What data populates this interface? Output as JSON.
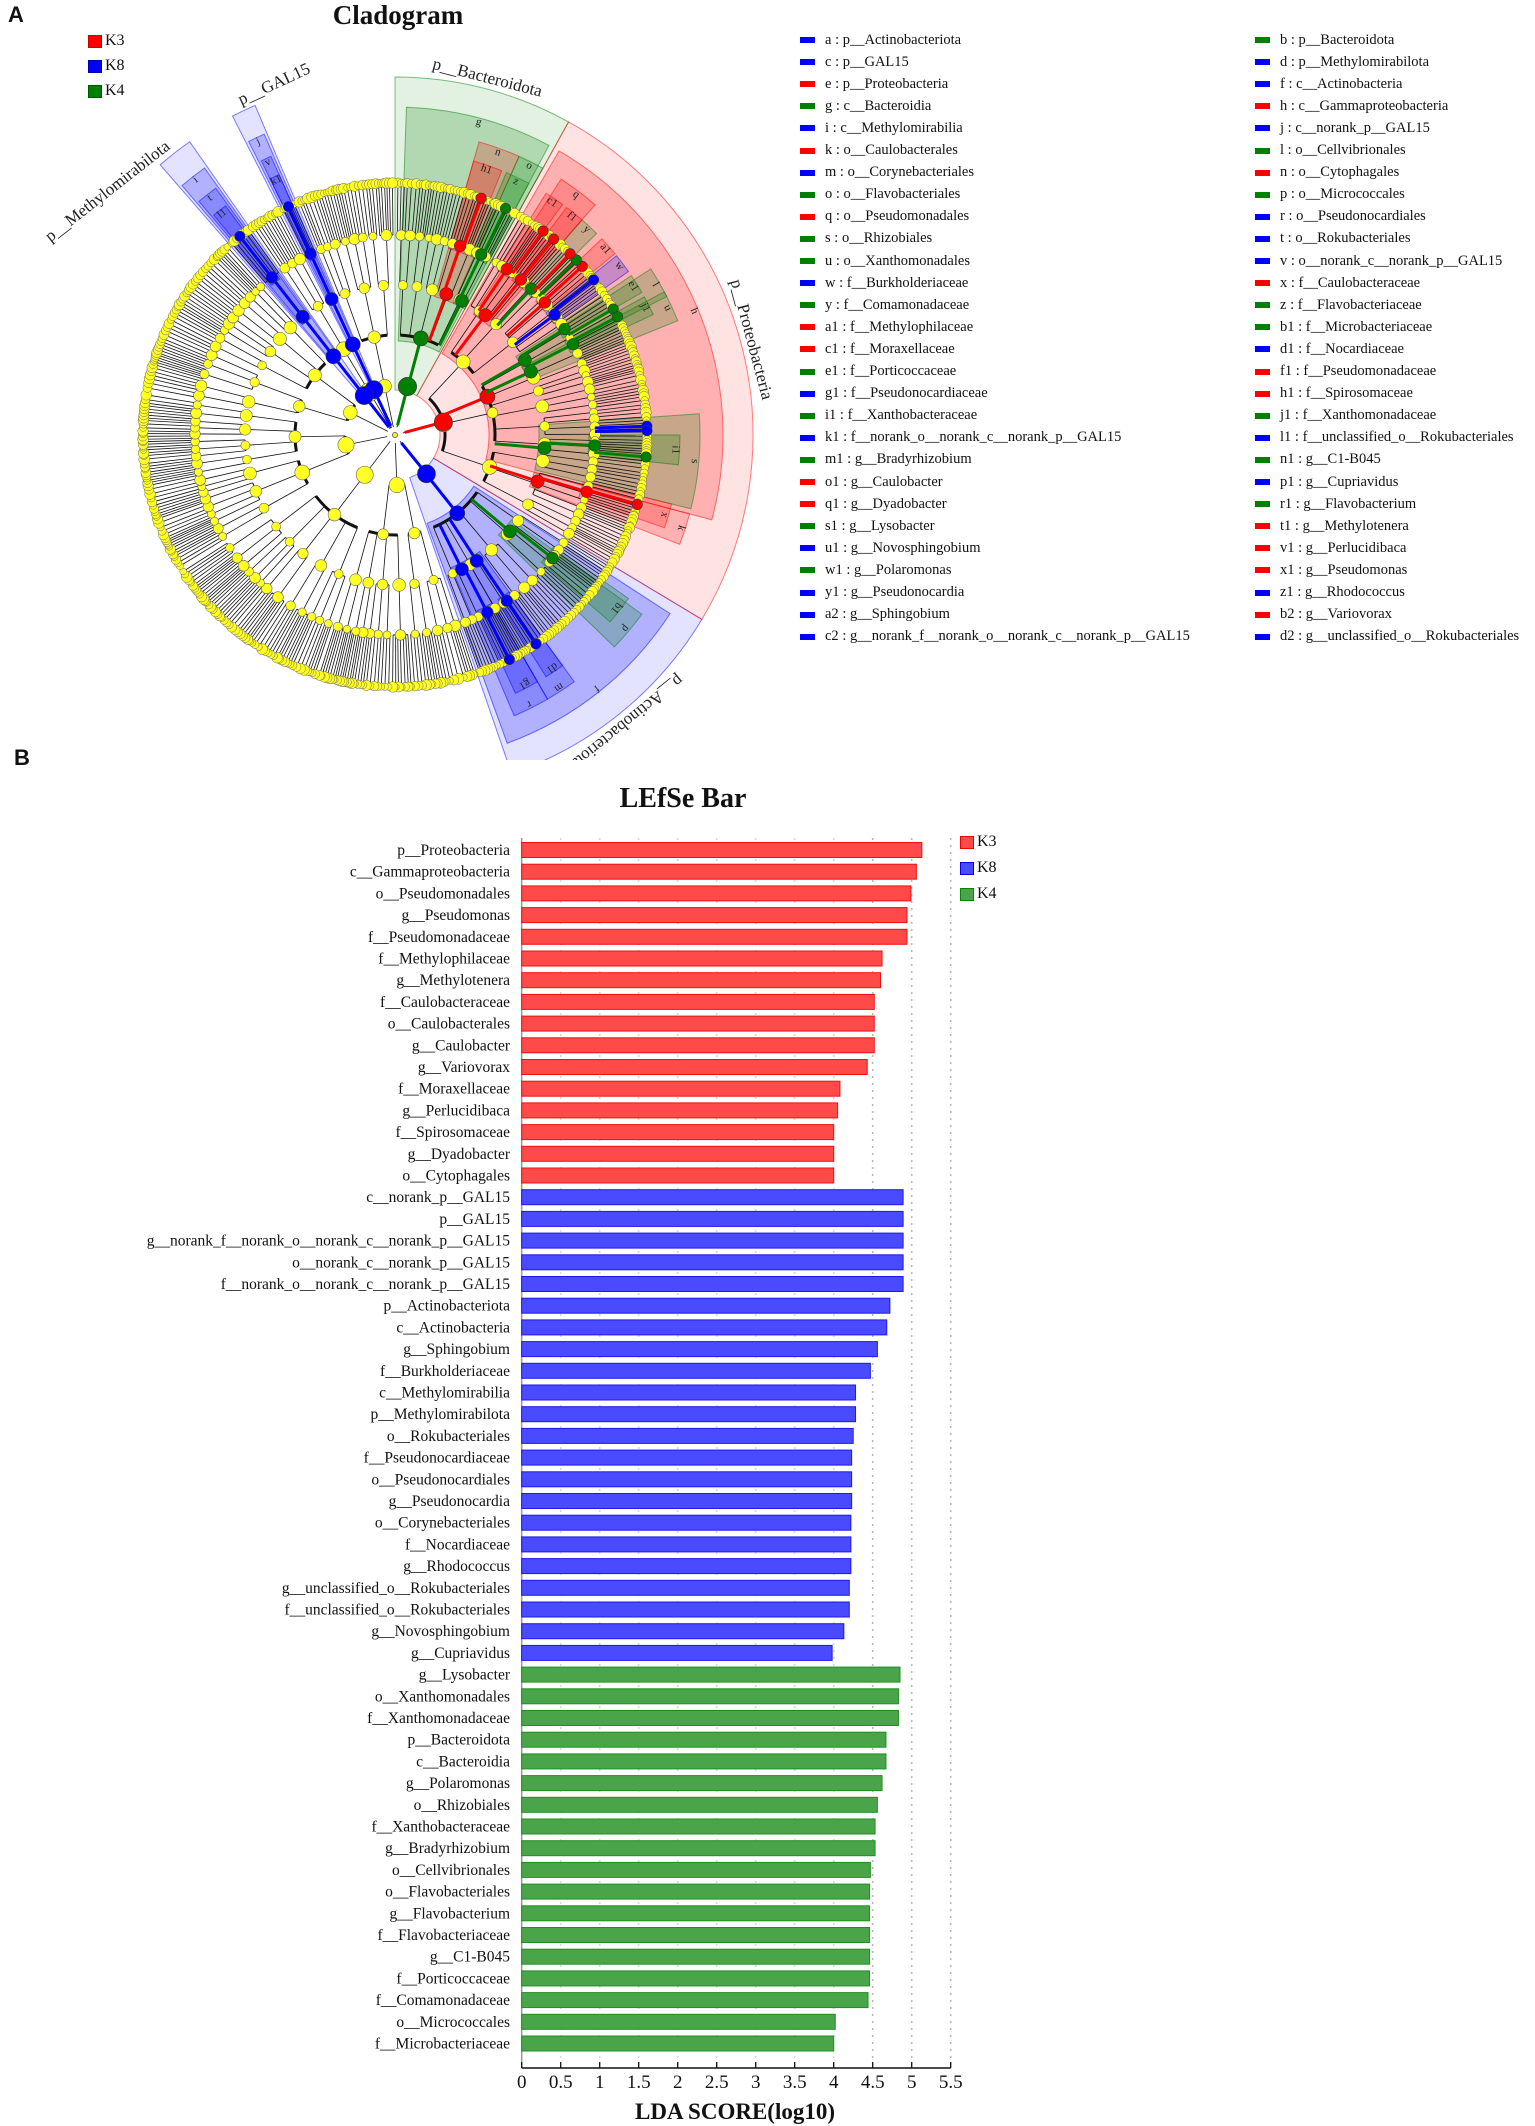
{
  "panel_a": {
    "letter": "A",
    "title": "Cladogram",
    "groups": [
      {
        "name": "K3",
        "color": "#ff0000"
      },
      {
        "name": "K8",
        "color": "#0000ff"
      },
      {
        "name": "K4",
        "color": "#008000"
      }
    ],
    "legend": [
      {
        "key": "a",
        "taxon": "p__Actinobacteriota",
        "group": "K8"
      },
      {
        "key": "b",
        "taxon": "p__Bacteroidota",
        "group": "K4"
      },
      {
        "key": "c",
        "taxon": "p__GAL15",
        "group": "K8"
      },
      {
        "key": "d",
        "taxon": "p__Methylomirabilota",
        "group": "K8"
      },
      {
        "key": "e",
        "taxon": "p__Proteobacteria",
        "group": "K3"
      },
      {
        "key": "f",
        "taxon": "c__Actinobacteria",
        "group": "K8"
      },
      {
        "key": "g",
        "taxon": "c__Bacteroidia",
        "group": "K4"
      },
      {
        "key": "h",
        "taxon": "c__Gammaproteobacteria",
        "group": "K3"
      },
      {
        "key": "i",
        "taxon": "c__Methylomirabilia",
        "group": "K8"
      },
      {
        "key": "j",
        "taxon": "c__norank_p__GAL15",
        "group": "K8"
      },
      {
        "key": "k",
        "taxon": "o__Caulobacterales",
        "group": "K3"
      },
      {
        "key": "l",
        "taxon": "o__Cellvibrionales",
        "group": "K4"
      },
      {
        "key": "m",
        "taxon": "o__Corynebacteriales",
        "group": "K8"
      },
      {
        "key": "n",
        "taxon": "o__Cytophagales",
        "group": "K3"
      },
      {
        "key": "o",
        "taxon": "o__Flavobacteriales",
        "group": "K4"
      },
      {
        "key": "p",
        "taxon": "o__Micrococcales",
        "group": "K4"
      },
      {
        "key": "q",
        "taxon": "o__Pseudomonadales",
        "group": "K3"
      },
      {
        "key": "r",
        "taxon": "o__Pseudonocardiales",
        "group": "K8"
      },
      {
        "key": "s",
        "taxon": "o__Rhizobiales",
        "group": "K4"
      },
      {
        "key": "t",
        "taxon": "o__Rokubacteriales",
        "group": "K8"
      },
      {
        "key": "u",
        "taxon": "o__Xanthomonadales",
        "group": "K4"
      },
      {
        "key": "v",
        "taxon": "o__norank_c__norank_p__GAL15",
        "group": "K8"
      },
      {
        "key": "w",
        "taxon": "f__Burkholderiaceae",
        "group": "K8"
      },
      {
        "key": "x",
        "taxon": "f__Caulobacteraceae",
        "group": "K3"
      },
      {
        "key": "y",
        "taxon": "f__Comamonadaceae",
        "group": "K4"
      },
      {
        "key": "z",
        "taxon": "f__Flavobacteriaceae",
        "group": "K4"
      },
      {
        "key": "a1",
        "taxon": "f__Methylophilaceae",
        "group": "K3"
      },
      {
        "key": "b1",
        "taxon": "f__Microbacteriaceae",
        "group": "K4"
      },
      {
        "key": "c1",
        "taxon": "f__Moraxellaceae",
        "group": "K3"
      },
      {
        "key": "d1",
        "taxon": "f__Nocardiaceae",
        "group": "K8"
      },
      {
        "key": "e1",
        "taxon": "f__Porticoccaceae",
        "group": "K4"
      },
      {
        "key": "f1",
        "taxon": "f__Pseudomonadaceae",
        "group": "K3"
      },
      {
        "key": "g1",
        "taxon": "f__Pseudonocardiaceae",
        "group": "K8"
      },
      {
        "key": "h1",
        "taxon": "f__Spirosomaceae",
        "group": "K3"
      },
      {
        "key": "i1",
        "taxon": "f__Xanthobacteraceae",
        "group": "K4"
      },
      {
        "key": "j1",
        "taxon": "f__Xanthomonadaceae",
        "group": "K4"
      },
      {
        "key": "k1",
        "taxon": "f__norank_o__norank_c__norank_p__GAL15",
        "group": "K8"
      },
      {
        "key": "l1",
        "taxon": "f__unclassified_o__Rokubacteriales",
        "group": "K8"
      },
      {
        "key": "m1",
        "taxon": "g__Bradyrhizobium",
        "group": "K4"
      },
      {
        "key": "n1",
        "taxon": "g__C1-B045",
        "group": "K4"
      },
      {
        "key": "o1",
        "taxon": "g__Caulobacter",
        "group": "K3"
      },
      {
        "key": "p1",
        "taxon": "g__Cupriavidus",
        "group": "K8"
      },
      {
        "key": "q1",
        "taxon": "g__Dyadobacter",
        "group": "K3"
      },
      {
        "key": "r1",
        "taxon": "g__Flavobacterium",
        "group": "K4"
      },
      {
        "key": "s1",
        "taxon": "g__Lysobacter",
        "group": "K4"
      },
      {
        "key": "t1",
        "taxon": "g__Methylotenera",
        "group": "K3"
      },
      {
        "key": "u1",
        "taxon": "g__Novosphingobium",
        "group": "K8"
      },
      {
        "key": "v1",
        "taxon": "g__Perlucidibaca",
        "group": "K3"
      },
      {
        "key": "w1",
        "taxon": "g__Polaromonas",
        "group": "K4"
      },
      {
        "key": "x1",
        "taxon": "g__Pseudomonas",
        "group": "K3"
      },
      {
        "key": "y1",
        "taxon": "g__Pseudonocardia",
        "group": "K8"
      },
      {
        "key": "z1",
        "taxon": "g__Rhodococcus",
        "group": "K8"
      },
      {
        "key": "a2",
        "taxon": "g__Sphingobium",
        "group": "K8"
      },
      {
        "key": "b2",
        "taxon": "g__Variovorax",
        "group": "K3"
      },
      {
        "key": "c2",
        "taxon": "g__norank_f__norank_o__norank_c__norank_p__GAL15",
        "group": "K8"
      },
      {
        "key": "d2",
        "taxon": "g__unclassified_o__Rokubacteriales",
        "group": "K8"
      }
    ]
  },
  "panel_b": {
    "letter": "B"
  },
  "chart_data": {
    "type": "bar",
    "orientation": "horizontal",
    "title": "LEfSe Bar",
    "xlabel": "LDA SCORE(log10)",
    "ylabel": "",
    "xlim": [
      0,
      5.5
    ],
    "xticks": [
      "0",
      "0.5",
      "1",
      "1.5",
      "2",
      "2.5",
      "3",
      "3.5",
      "4",
      "4.5",
      "5",
      "5.5"
    ],
    "grid": "vertical dotted",
    "legend": {
      "position": "top-right",
      "entries": [
        {
          "name": "K3",
          "color": "#ff4a4a"
        },
        {
          "name": "K8",
          "color": "#4a4aff"
        },
        {
          "name": "K4",
          "color": "#4aa54a"
        }
      ]
    },
    "categories": [
      "p__Proteobacteria",
      "c__Gammaproteobacteria",
      "o__Pseudomonadales",
      "g__Pseudomonas",
      "f__Pseudomonadaceae",
      "f__Methylophilaceae",
      "g__Methylotenera",
      "f__Caulobacteraceae",
      "o__Caulobacterales",
      "g__Caulobacter",
      "g__Variovorax",
      "f__Moraxellaceae",
      "g__Perlucidibaca",
      "f__Spirosomaceae",
      "g__Dyadobacter",
      "o__Cytophagales",
      "c__norank_p__GAL15",
      "p__GAL15",
      "g__norank_f__norank_o__norank_c__norank_p__GAL15",
      "o__norank_c__norank_p__GAL15",
      "f__norank_o__norank_c__norank_p__GAL15",
      "p__Actinobacteriota",
      "c__Actinobacteria",
      "g__Sphingobium",
      "f__Burkholderiaceae",
      "c__Methylomirabilia",
      "p__Methylomirabilota",
      "o__Rokubacteriales",
      "f__Pseudonocardiaceae",
      "o__Pseudonocardiales",
      "g__Pseudonocardia",
      "o__Corynebacteriales",
      "f__Nocardiaceae",
      "g__Rhodococcus",
      "g__unclassified_o__Rokubacteriales",
      "f__unclassified_o__Rokubacteriales",
      "g__Novosphingobium",
      "g__Cupriavidus",
      "g__Lysobacter",
      "o__Xanthomonadales",
      "f__Xanthomonadaceae",
      "p__Bacteroidota",
      "c__Bacteroidia",
      "g__Polaromonas",
      "o__Rhizobiales",
      "f__Xanthobacteraceae",
      "g__Bradyrhizobium",
      "o__Cellvibrionales",
      "o__Flavobacteriales",
      "g__Flavobacterium",
      "f__Flavobacteriaceae",
      "g__C1-B045",
      "f__Porticoccaceae",
      "f__Comamonadaceae",
      "o__Micrococcales",
      "f__Microbacteriaceae"
    ],
    "values": [
      5.13,
      5.06,
      4.99,
      4.94,
      4.94,
      4.62,
      4.6,
      4.52,
      4.52,
      4.52,
      4.43,
      4.08,
      4.05,
      4.0,
      4.0,
      4.0,
      4.89,
      4.89,
      4.89,
      4.89,
      4.89,
      4.72,
      4.68,
      4.56,
      4.47,
      4.28,
      4.28,
      4.25,
      4.23,
      4.23,
      4.23,
      4.22,
      4.22,
      4.22,
      4.2,
      4.2,
      4.13,
      3.98,
      4.85,
      4.83,
      4.83,
      4.67,
      4.67,
      4.62,
      4.56,
      4.53,
      4.53,
      4.47,
      4.46,
      4.46,
      4.46,
      4.46,
      4.46,
      4.44,
      4.02,
      4.0
    ],
    "groups": [
      "K3",
      "K3",
      "K3",
      "K3",
      "K3",
      "K3",
      "K3",
      "K3",
      "K3",
      "K3",
      "K3",
      "K3",
      "K3",
      "K3",
      "K3",
      "K3",
      "K8",
      "K8",
      "K8",
      "K8",
      "K8",
      "K8",
      "K8",
      "K8",
      "K8",
      "K8",
      "K8",
      "K8",
      "K8",
      "K8",
      "K8",
      "K8",
      "K8",
      "K8",
      "K8",
      "K8",
      "K8",
      "K8",
      "K4",
      "K4",
      "K4",
      "K4",
      "K4",
      "K4",
      "K4",
      "K4",
      "K4",
      "K4",
      "K4",
      "K4",
      "K4",
      "K4",
      "K4",
      "K4",
      "K4",
      "K4"
    ]
  }
}
